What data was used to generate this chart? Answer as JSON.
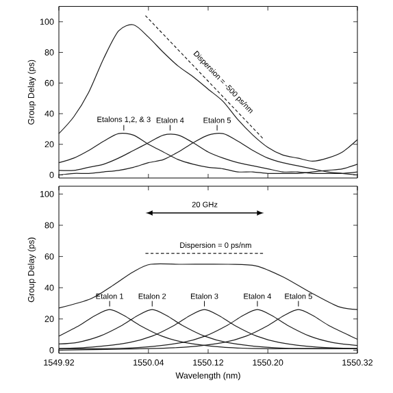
{
  "chart_data": [
    {
      "type": "line",
      "ylabel": "Group Delay (ps)",
      "xlim": [
        1549.92,
        1550.32
      ],
      "ylim": [
        -2,
        110
      ],
      "xticks": [
        1549.92,
        1550.04,
        1550.12,
        1550.2,
        1550.32
      ],
      "yticks": [
        0,
        20,
        40,
        60,
        80,
        100
      ],
      "tick_labels": "y",
      "x": [
        1549.92,
        1549.94,
        1549.96,
        1549.98,
        1550.0,
        1550.02,
        1550.04,
        1550.06,
        1550.08,
        1550.1,
        1550.12,
        1550.14,
        1550.16,
        1550.18,
        1550.2,
        1550.22,
        1550.24,
        1550.26,
        1550.28,
        1550.3,
        1550.32
      ],
      "series": [
        {
          "color": "#1a1a1a",
          "values": [
            27,
            38,
            54,
            76,
            94,
            98,
            90,
            80,
            71,
            64,
            56,
            48,
            36,
            26,
            18,
            13,
            11,
            9,
            11,
            15,
            23
          ]
        },
        {
          "color": "#1a1a1a",
          "values": [
            8,
            11,
            16,
            22,
            27,
            26,
            20,
            15,
            10,
            7,
            5,
            4,
            2,
            2,
            1,
            1,
            1,
            2,
            3,
            4,
            7
          ]
        },
        {
          "color": "#1a1a1a",
          "values": [
            3,
            3,
            5,
            7,
            11,
            16,
            21,
            26,
            26,
            21,
            15,
            11,
            8,
            6,
            4,
            2,
            2,
            1,
            1,
            1,
            2
          ]
        },
        {
          "color": "#1a1a1a",
          "values": [
            0,
            1,
            1,
            2,
            3,
            5,
            8,
            10,
            15,
            21,
            26,
            27,
            22,
            16,
            11,
            8,
            6,
            4,
            2,
            1,
            0
          ]
        },
        {
          "color": "#1a1a1a",
          "line_style": "dashed",
          "x": [
            1550.036,
            1550.195
          ],
          "values": [
            104,
            23
          ]
        }
      ],
      "annotations": [
        {
          "text": "Etalons 1,2, & 3",
          "x": 1550.007,
          "y": 29
        },
        {
          "text": "Etalon 4",
          "x": 1550.069,
          "y": 29
        },
        {
          "text": "Etalon 5",
          "x": 1550.132,
          "y": 29
        },
        {
          "text": "Dispersion = -500 ps/nm",
          "x": 1550.135,
          "y": 58
        }
      ]
    },
    {
      "type": "line",
      "xlabel": "Wavelength (nm)",
      "ylabel": "Group Delay (ps)",
      "xlim": [
        1549.92,
        1550.32
      ],
      "ylim": [
        -2,
        105
      ],
      "xticks": [
        1549.92,
        1550.04,
        1550.12,
        {
          "value": 1550.2,
          "label": "1550.20"
        },
        1550.32
      ],
      "yticks": [
        0,
        20,
        40,
        60,
        80,
        100
      ],
      "series": [
        {
          "color": "#1a1a1a",
          "x": [
            1549.92,
            1549.963,
            1549.994,
            1550.019,
            1550.043,
            1550.086,
            1550.147,
            1550.184,
            1550.22,
            1550.257,
            1550.294,
            1550.32
          ],
          "values": [
            27,
            33,
            42,
            50,
            55,
            55,
            55,
            54,
            47,
            37,
            28,
            26
          ]
        },
        {
          "color": "#1a1a1a",
          "x": [
            1549.92,
            1549.948,
            1549.968,
            1549.988,
            1550.008,
            1550.028,
            1550.058,
            1550.088,
            1550.138,
            1550.188,
            1550.25,
            1550.32
          ],
          "values": [
            9,
            16,
            22,
            26,
            22,
            16,
            9,
            5,
            2,
            1,
            1,
            1
          ]
        },
        {
          "color": "#1a1a1a",
          "x": [
            1549.92,
            1549.945,
            1549.975,
            1550.005,
            1550.025,
            1550.045,
            1550.065,
            1550.085,
            1550.115,
            1550.145,
            1550.195,
            1550.245,
            1550.32
          ],
          "values": [
            4,
            5,
            9,
            16,
            22,
            26,
            22,
            16,
            9,
            5,
            2,
            1,
            1
          ]
        },
        {
          "color": "#1a1a1a",
          "x": [
            1549.92,
            1549.965,
            1550.015,
            1550.045,
            1550.075,
            1550.095,
            1550.115,
            1550.135,
            1550.155,
            1550.185,
            1550.215,
            1550.265,
            1550.32
          ],
          "values": [
            1,
            2,
            5,
            9,
            16,
            22,
            26,
            22,
            16,
            9,
            5,
            2,
            1
          ]
        },
        {
          "color": "#1a1a1a",
          "x": [
            1549.92,
            1549.986,
            1550.036,
            1550.086,
            1550.116,
            1550.146,
            1550.166,
            1550.186,
            1550.206,
            1550.226,
            1550.256,
            1550.286,
            1550.32
          ],
          "values": [
            1,
            1,
            2,
            5,
            9,
            16,
            22,
            26,
            22,
            16,
            9,
            5,
            3
          ]
        },
        {
          "color": "#1a1a1a",
          "x": [
            1549.92,
            1550.041,
            1550.091,
            1550.141,
            1550.171,
            1550.201,
            1550.221,
            1550.241,
            1550.261,
            1550.281,
            1550.311,
            1550.32
          ],
          "values": [
            0,
            1,
            2,
            5,
            9,
            16,
            22,
            26,
            22,
            16,
            9,
            7
          ]
        },
        {
          "color": "#1a1a1a",
          "line_style": "dashed",
          "x": [
            1550.036,
            1550.195
          ],
          "values": [
            62,
            62
          ]
        }
      ],
      "annotations": [
        {
          "text": "Etalon 1",
          "x": 1549.988,
          "y": 28
        },
        {
          "text": "Etalon 2",
          "x": 1550.045,
          "y": 28
        },
        {
          "text": "Etalon 3",
          "x": 1550.115,
          "y": 28
        },
        {
          "text": "Etalon 4",
          "x": 1550.186,
          "y": 28
        },
        {
          "text": "Etalon 5",
          "x": 1550.241,
          "y": 28
        },
        "20 GHz",
        {
          "text": "Dispersion = 0 ps/nm",
          "x": 1550.13,
          "y": 63.5
        }
      ]
    }
  ]
}
